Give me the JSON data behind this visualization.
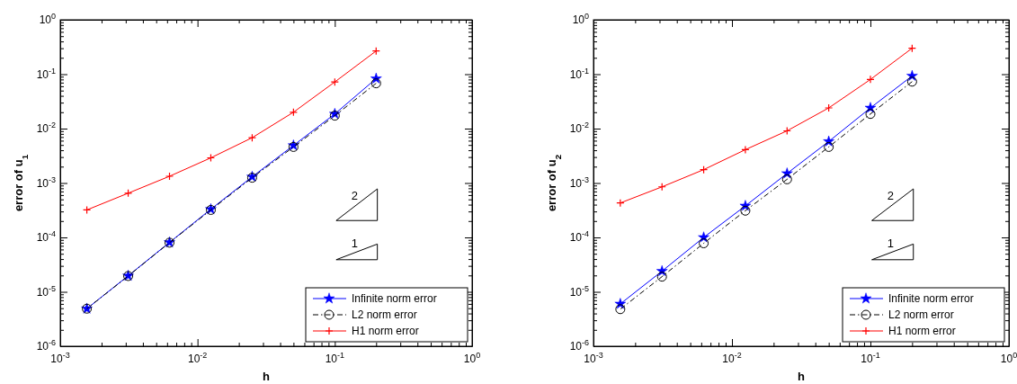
{
  "chart_data": [
    {
      "type": "line",
      "xlabel": "h",
      "ylabel": "error of u$_{1}$",
      "log": "xy",
      "grid": false,
      "legend": "bottom right",
      "xlim": [
        0.001,
        1
      ],
      "ylim": [
        1e-06,
        1
      ],
      "xticks": [
        {
          "value": 0.001,
          "label": "10$^{-3}$"
        },
        {
          "value": 0.002,
          "label": null
        },
        {
          "value": 0.003,
          "label": null
        },
        {
          "value": 0.004,
          "label": null
        },
        {
          "value": 0.005,
          "label": null
        },
        {
          "value": 0.006,
          "label": null
        },
        {
          "value": 0.007,
          "label": null
        },
        {
          "value": 0.008,
          "label": null
        },
        {
          "value": 0.009,
          "label": null
        },
        {
          "value": 0.01,
          "label": "10$^{-2}$"
        },
        {
          "value": 0.02,
          "label": null
        },
        {
          "value": 0.03,
          "label": null
        },
        {
          "value": 0.04,
          "label": null
        },
        {
          "value": 0.05,
          "label": null
        },
        {
          "value": 0.06,
          "label": null
        },
        {
          "value": 0.07,
          "label": null
        },
        {
          "value": 0.08,
          "label": null
        },
        {
          "value": 0.09,
          "label": null
        },
        {
          "value": 0.1,
          "label": "10$^{-1}$"
        },
        {
          "value": 0.2,
          "label": null
        },
        {
          "value": 0.3,
          "label": null
        },
        {
          "value": 0.4,
          "label": null
        },
        {
          "value": 0.5,
          "label": null
        },
        {
          "value": 0.6,
          "label": null
        },
        {
          "value": 0.7,
          "label": null
        },
        {
          "value": 0.8,
          "label": null
        },
        {
          "value": 0.9,
          "label": null
        },
        {
          "value": 1,
          "label": "10$^{0}$"
        }
      ],
      "yticks": [
        {
          "value": 1e-06,
          "label": "10$^{-6}$"
        },
        {
          "value": 2e-06,
          "label": null
        },
        {
          "value": 3e-06,
          "label": null
        },
        {
          "value": 4e-06,
          "label": null
        },
        {
          "value": 5e-06,
          "label": null
        },
        {
          "value": 6e-06,
          "label": null
        },
        {
          "value": 7e-06,
          "label": null
        },
        {
          "value": 8e-06,
          "label": null
        },
        {
          "value": 9e-06,
          "label": null
        },
        {
          "value": 1e-05,
          "label": "10$^{-5}$"
        },
        {
          "value": 2e-05,
          "label": null
        },
        {
          "value": 3e-05,
          "label": null
        },
        {
          "value": 4e-05,
          "label": null
        },
        {
          "value": 5e-05,
          "label": null
        },
        {
          "value": 6e-05,
          "label": null
        },
        {
          "value": 7e-05,
          "label": null
        },
        {
          "value": 8e-05,
          "label": null
        },
        {
          "value": 9e-05,
          "label": null
        },
        {
          "value": 0.0001,
          "label": "10$^{-4}$"
        },
        {
          "value": 0.0002,
          "label": null
        },
        {
          "value": 0.0003,
          "label": null
        },
        {
          "value": 0.0004,
          "label": null
        },
        {
          "value": 0.0005,
          "label": null
        },
        {
          "value": 0.0006,
          "label": null
        },
        {
          "value": 0.0007,
          "label": null
        },
        {
          "value": 0.0008,
          "label": null
        },
        {
          "value": 0.0009,
          "label": null
        },
        {
          "value": 0.001,
          "label": "10$^{-3}$"
        },
        {
          "value": 0.002,
          "label": null
        },
        {
          "value": 0.003,
          "label": null
        },
        {
          "value": 0.004,
          "label": null
        },
        {
          "value": 0.005,
          "label": null
        },
        {
          "value": 0.006,
          "label": null
        },
        {
          "value": 0.007,
          "label": null
        },
        {
          "value": 0.008,
          "label": null
        },
        {
          "value": 0.009,
          "label": null
        },
        {
          "value": 0.01,
          "label": "10$^{-2}$"
        },
        {
          "value": 0.02,
          "label": null
        },
        {
          "value": 0.03,
          "label": null
        },
        {
          "value": 0.04,
          "label": null
        },
        {
          "value": 0.05,
          "label": null
        },
        {
          "value": 0.06,
          "label": null
        },
        {
          "value": 0.07,
          "label": null
        },
        {
          "value": 0.08,
          "label": null
        },
        {
          "value": 0.09,
          "label": null
        },
        {
          "value": 0.1,
          "label": "10$^{-1}$"
        },
        {
          "value": 0.2,
          "label": null
        },
        {
          "value": 0.3,
          "label": null
        },
        {
          "value": 0.4,
          "label": null
        },
        {
          "value": 0.5,
          "label": null
        },
        {
          "value": 0.6,
          "label": null
        },
        {
          "value": 0.7,
          "label": null
        },
        {
          "value": 0.8,
          "label": null
        },
        {
          "value": 0.9,
          "label": null
        },
        {
          "value": 1,
          "label": "10$^{0}$"
        }
      ],
      "x": [
        0.2,
        0.1,
        0.05,
        0.025,
        0.0125,
        0.00625,
        0.003125,
        0.0015625
      ],
      "series": [
        {
          "name": "Infinite norm error",
          "color": "#0000ff",
          "marker": "star",
          "line_style": "solid",
          "values": [
            0.083,
            0.0186,
            0.0049,
            0.0013,
            0.00033,
            8.1e-05,
            1.97e-05,
            4.9e-06
          ]
        },
        {
          "name": "L2 norm error",
          "color": "#000000",
          "marker": "circle",
          "line_style": "dashed",
          "values": [
            0.068,
            0.0173,
            0.0046,
            0.00125,
            0.00032,
            8e-05,
            1.95e-05,
            4.9e-06
          ]
        },
        {
          "name": "H1 norm error",
          "color": "#ff0000",
          "marker": "cross",
          "line_style": "solid",
          "values": [
            0.267,
            0.072,
            0.02,
            0.0068,
            0.0029,
            0.00133,
            0.00065,
            0.00032
          ]
        }
      ],
      "annotations": [
        "2",
        "1"
      ]
    },
    {
      "type": "line",
      "xlabel": "h",
      "ylabel": "error of u$_{2}$",
      "log": "xy",
      "grid": false,
      "legend": "bottom right",
      "xlim": [
        0.001,
        1
      ],
      "ylim": [
        1e-06,
        1
      ],
      "xticks": [
        {
          "value": 0.001,
          "label": "10$^{-3}$"
        },
        {
          "value": 0.002,
          "label": null
        },
        {
          "value": 0.003,
          "label": null
        },
        {
          "value": 0.004,
          "label": null
        },
        {
          "value": 0.005,
          "label": null
        },
        {
          "value": 0.006,
          "label": null
        },
        {
          "value": 0.007,
          "label": null
        },
        {
          "value": 0.008,
          "label": null
        },
        {
          "value": 0.009,
          "label": null
        },
        {
          "value": 0.01,
          "label": "10$^{-2}$"
        },
        {
          "value": 0.02,
          "label": null
        },
        {
          "value": 0.03,
          "label": null
        },
        {
          "value": 0.04,
          "label": null
        },
        {
          "value": 0.05,
          "label": null
        },
        {
          "value": 0.06,
          "label": null
        },
        {
          "value": 0.07,
          "label": null
        },
        {
          "value": 0.08,
          "label": null
        },
        {
          "value": 0.09,
          "label": null
        },
        {
          "value": 0.1,
          "label": "10$^{-1}$"
        },
        {
          "value": 0.2,
          "label": null
        },
        {
          "value": 0.3,
          "label": null
        },
        {
          "value": 0.4,
          "label": null
        },
        {
          "value": 0.5,
          "label": null
        },
        {
          "value": 0.6,
          "label": null
        },
        {
          "value": 0.7,
          "label": null
        },
        {
          "value": 0.8,
          "label": null
        },
        {
          "value": 0.9,
          "label": null
        },
        {
          "value": 1,
          "label": "10$^{0}$"
        }
      ],
      "yticks": [
        {
          "value": 1e-06,
          "label": "10$^{-6}$"
        },
        {
          "value": 2e-06,
          "label": null
        },
        {
          "value": 3e-06,
          "label": null
        },
        {
          "value": 4e-06,
          "label": null
        },
        {
          "value": 5e-06,
          "label": null
        },
        {
          "value": 6e-06,
          "label": null
        },
        {
          "value": 7e-06,
          "label": null
        },
        {
          "value": 8e-06,
          "label": null
        },
        {
          "value": 9e-06,
          "label": null
        },
        {
          "value": 1e-05,
          "label": "10$^{-5}$"
        },
        {
          "value": 2e-05,
          "label": null
        },
        {
          "value": 3e-05,
          "label": null
        },
        {
          "value": 4e-05,
          "label": null
        },
        {
          "value": 5e-05,
          "label": null
        },
        {
          "value": 6e-05,
          "label": null
        },
        {
          "value": 7e-05,
          "label": null
        },
        {
          "value": 8e-05,
          "label": null
        },
        {
          "value": 9e-05,
          "label": null
        },
        {
          "value": 0.0001,
          "label": "10$^{-4}$"
        },
        {
          "value": 0.0002,
          "label": null
        },
        {
          "value": 0.0003,
          "label": null
        },
        {
          "value": 0.0004,
          "label": null
        },
        {
          "value": 0.0005,
          "label": null
        },
        {
          "value": 0.0006,
          "label": null
        },
        {
          "value": 0.0007,
          "label": null
        },
        {
          "value": 0.0008,
          "label": null
        },
        {
          "value": 0.0009,
          "label": null
        },
        {
          "value": 0.001,
          "label": "10$^{-3}$"
        },
        {
          "value": 0.002,
          "label": null
        },
        {
          "value": 0.003,
          "label": null
        },
        {
          "value": 0.004,
          "label": null
        },
        {
          "value": 0.005,
          "label": null
        },
        {
          "value": 0.006,
          "label": null
        },
        {
          "value": 0.007,
          "label": null
        },
        {
          "value": 0.008,
          "label": null
        },
        {
          "value": 0.009,
          "label": null
        },
        {
          "value": 0.01,
          "label": "10$^{-2}$"
        },
        {
          "value": 0.02,
          "label": null
        },
        {
          "value": 0.03,
          "label": null
        },
        {
          "value": 0.04,
          "label": null
        },
        {
          "value": 0.05,
          "label": null
        },
        {
          "value": 0.06,
          "label": null
        },
        {
          "value": 0.07,
          "label": null
        },
        {
          "value": 0.08,
          "label": null
        },
        {
          "value": 0.09,
          "label": null
        },
        {
          "value": 0.1,
          "label": "10$^{-1}$"
        },
        {
          "value": 0.2,
          "label": null
        },
        {
          "value": 0.3,
          "label": null
        },
        {
          "value": 0.4,
          "label": null
        },
        {
          "value": 0.5,
          "label": null
        },
        {
          "value": 0.6,
          "label": null
        },
        {
          "value": 0.7,
          "label": null
        },
        {
          "value": 0.8,
          "label": null
        },
        {
          "value": 0.9,
          "label": null
        },
        {
          "value": 1,
          "label": "10$^{0}$"
        }
      ],
      "x": [
        0.2,
        0.1,
        0.05,
        0.025,
        0.0125,
        0.00625,
        0.003125,
        0.0015625
      ],
      "series": [
        {
          "name": "Infinite norm error",
          "color": "#0000ff",
          "marker": "star",
          "line_style": "solid",
          "values": [
            0.093,
            0.024,
            0.0058,
            0.0015,
            0.00038,
            0.0001,
            2.4e-05,
            6e-06
          ]
        },
        {
          "name": "L2 norm error",
          "color": "#000000",
          "marker": "circle",
          "line_style": "dashed",
          "values": [
            0.073,
            0.0186,
            0.0046,
            0.00117,
            0.00031,
            7.8e-05,
            1.9e-05,
            4.8e-06
          ]
        },
        {
          "name": "H1 norm error",
          "color": "#ff0000",
          "marker": "cross",
          "line_style": "solid",
          "values": [
            0.3,
            0.08,
            0.024,
            0.0091,
            0.0041,
            0.00176,
            0.00085,
            0.00043
          ]
        }
      ],
      "annotations": [
        "2",
        "1"
      ]
    }
  ]
}
